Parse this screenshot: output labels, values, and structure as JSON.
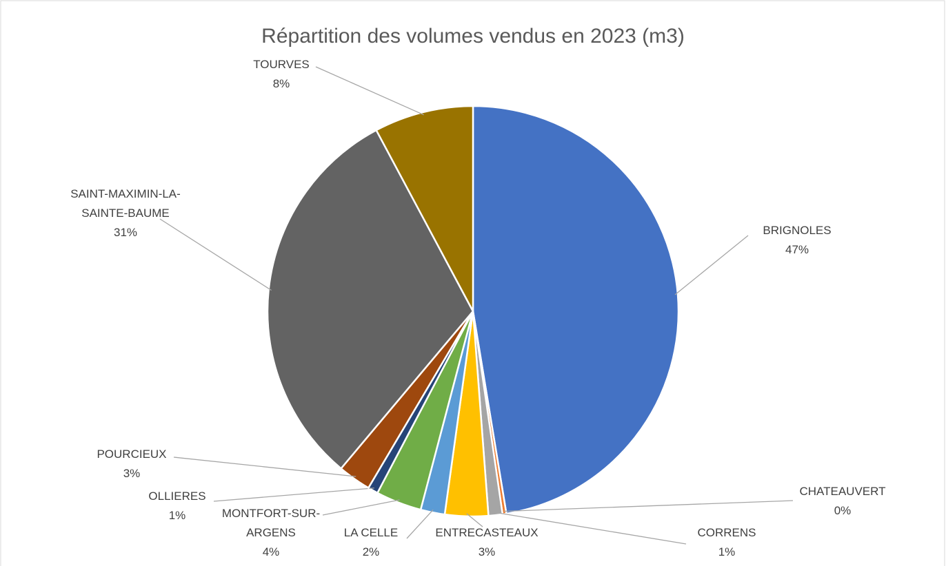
{
  "chart_data": {
    "type": "pie",
    "title": "Répartition des volumes vendus en 2023 (m3)",
    "categories": [
      "BRIGNOLES",
      "CHATEAUVERT",
      "CORRENS",
      "ENTRECASTEAUX",
      "LA CELLE",
      "MONTFORT-SUR-ARGENS",
      "OLLIERES",
      "POURCIEUX",
      "SAINT-MAXIMIN-LA-SAINTE-BAUME",
      "TOURVES"
    ],
    "values": [
      47.4,
      0.3,
      1.1,
      3.4,
      1.9,
      3.6,
      0.8,
      2.6,
      31.1,
      7.8
    ],
    "value_labels": [
      "47%",
      "0%",
      "1%",
      "3%",
      "2%",
      "4%",
      "1%",
      "3%",
      "31%",
      "8%"
    ],
    "colors": [
      "#4472c4",
      "#ed7d31",
      "#a5a5a5",
      "#ffc000",
      "#5b9bd5",
      "#70ad47",
      "#264478",
      "#9e480e",
      "#636363",
      "#997300"
    ]
  }
}
